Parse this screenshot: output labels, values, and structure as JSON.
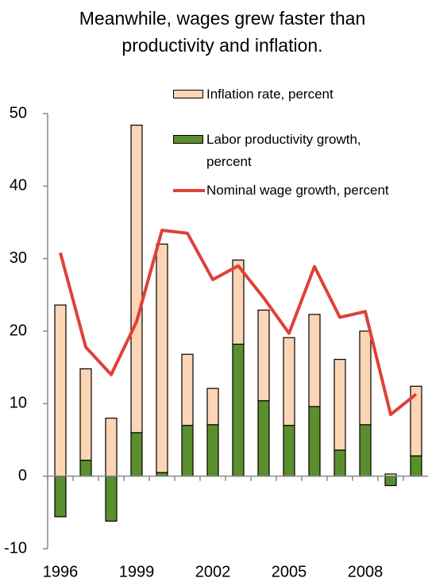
{
  "chart_data": {
    "type": "bar-line",
    "title": "Meanwhile, wages grew faster than productivity and inflation.",
    "categories": [
      "1996",
      null,
      null,
      "1999",
      null,
      null,
      "2002",
      null,
      null,
      "2005",
      null,
      null,
      "2008",
      null,
      null
    ],
    "series": [
      {
        "name": "Labor productivity growth, percent",
        "type": "bar",
        "color": "#5b8f2e",
        "values": [
          -5.6,
          2.2,
          -6.2,
          6.0,
          0.5,
          7.0,
          7.1,
          18.2,
          10.4,
          7.0,
          9.6,
          3.6,
          7.1,
          -1.3,
          2.8
        ]
      },
      {
        "name": "Inflation rate, percent",
        "type": "bar",
        "color": "#fcd5b5",
        "values": [
          23.6,
          12.6,
          8.0,
          42.4,
          31.5,
          9.8,
          5.0,
          11.6,
          12.5,
          12.1,
          12.7,
          12.5,
          12.9,
          0.3,
          9.6
        ]
      },
      {
        "name": "Nominal wage growth, percent",
        "type": "line",
        "color": "#e0403a",
        "values": [
          30.8,
          17.8,
          14.0,
          21.3,
          33.9,
          33.5,
          27.1,
          29.0,
          24.6,
          19.7,
          28.9,
          21.9,
          22.7,
          8.5,
          11.3
        ]
      }
    ],
    "legend_order": [
      1,
      0,
      2
    ],
    "ylim": [
      -10,
      50
    ],
    "yticks": [
      -10,
      0,
      10,
      20,
      30,
      40,
      50
    ]
  }
}
